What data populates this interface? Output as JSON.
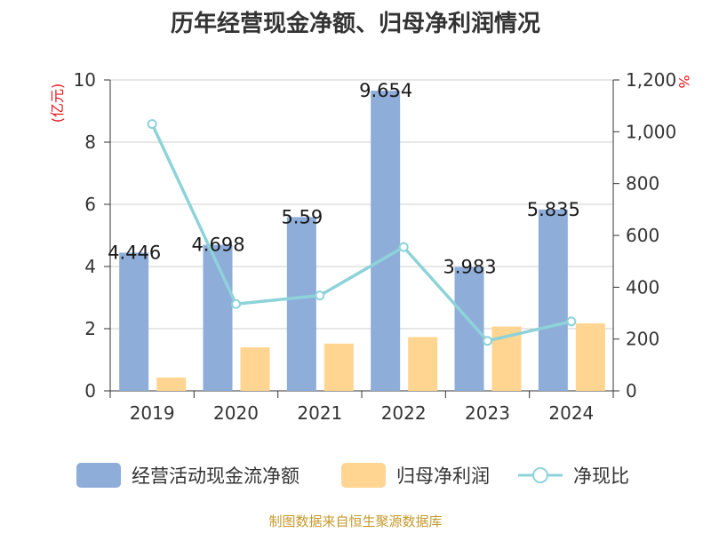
{
  "title": "历年经营现金净额、归母净利润情况",
  "source": "制图数据来自恒生聚源数据库",
  "colors": {
    "ocf": "#8eadd9",
    "profit": "#ffd591",
    "ratio": "#8dd3d9",
    "unit_red": "#e8141b",
    "source": "#c49a2c"
  },
  "chart_data": {
    "type": "bar",
    "categories": [
      "2019",
      "2020",
      "2021",
      "2022",
      "2023",
      "2024"
    ],
    "series": [
      {
        "name": "经营活动现金流净额",
        "type": "bar",
        "axis": "left",
        "values": [
          4.446,
          4.698,
          5.59,
          9.654,
          3.983,
          5.835
        ],
        "labels": [
          "4.446",
          "4.698",
          "5.59",
          "9.654",
          "3.983",
          "5.835"
        ]
      },
      {
        "name": "归母净利润",
        "type": "bar",
        "axis": "left",
        "values": [
          0.43,
          1.4,
          1.52,
          1.73,
          2.07,
          2.17
        ]
      },
      {
        "name": "净现比",
        "type": "line",
        "axis": "right",
        "values": [
          1030,
          335,
          368,
          555,
          193,
          268
        ]
      }
    ],
    "y_left": {
      "unit": "(亿元)",
      "ylim": [
        0,
        10
      ],
      "ticks": [
        "0",
        "2",
        "4",
        "6",
        "8",
        "10"
      ]
    },
    "y_right": {
      "unit": "%",
      "ylim": [
        0,
        1200
      ],
      "ticks": [
        "0",
        "200",
        "400",
        "600",
        "800",
        "1,000",
        "1,200"
      ]
    },
    "grid": true,
    "legend": "bottom"
  }
}
